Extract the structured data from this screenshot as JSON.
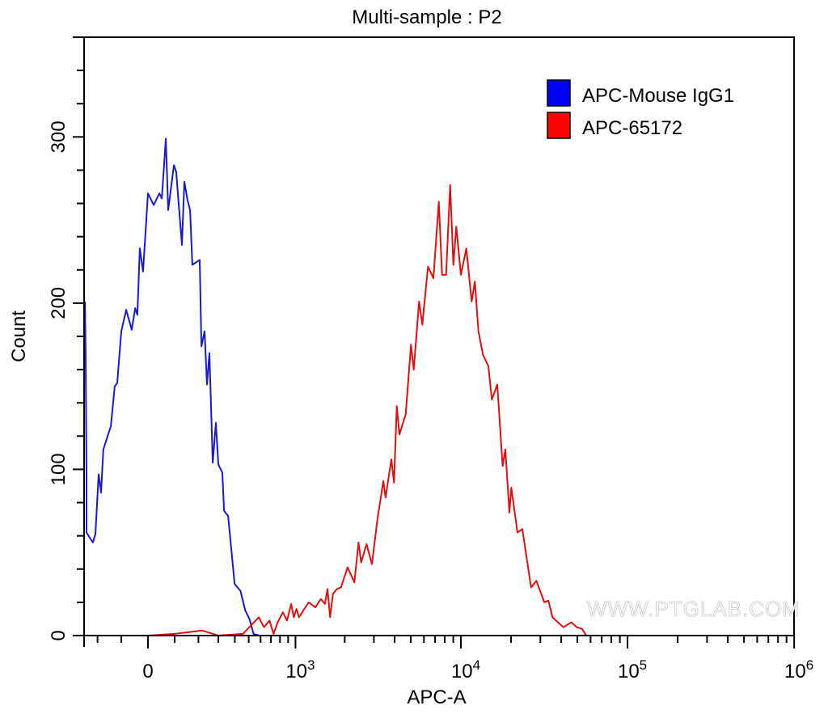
{
  "chart_data": {
    "type": "line",
    "title": "Multi-sample : P2",
    "xlabel": "APC-A",
    "ylabel": "Count",
    "x_scale": "biexponential",
    "xlim": [
      -265,
      1000000
    ],
    "ylim": [
      0,
      360
    ],
    "grid": false,
    "legend_position": "top-right",
    "y_ticks": [
      {
        "value": 0,
        "label": "0"
      },
      {
        "value": 100,
        "label": "100"
      },
      {
        "value": 200,
        "label": "200"
      },
      {
        "value": 300,
        "label": "300"
      }
    ],
    "x_ticks": [
      {
        "value": 0,
        "base": "0",
        "exp": ""
      },
      {
        "value": 1000,
        "base": "10",
        "exp": "3"
      },
      {
        "value": 10000,
        "base": "10",
        "exp": "4"
      },
      {
        "value": 100000,
        "base": "10",
        "exp": "5"
      },
      {
        "value": 1000000,
        "base": "10",
        "exp": "6"
      }
    ],
    "series": [
      {
        "name": "APC-Mouse IgG1",
        "color": "#0000ff",
        "line_color": "#1a1acc",
        "points": [
          [
            -261,
            201
          ],
          [
            -257,
            166
          ],
          [
            -253,
            94
          ],
          [
            -253,
            62
          ],
          [
            -222,
            56
          ],
          [
            -210,
            61
          ],
          [
            -195,
            97
          ],
          [
            -184,
            86
          ],
          [
            -174,
            112
          ],
          [
            -142,
            126
          ],
          [
            -126,
            150
          ],
          [
            -116,
            152
          ],
          [
            -100,
            183
          ],
          [
            -81,
            196
          ],
          [
            -60,
            184
          ],
          [
            -47,
            197
          ],
          [
            -39,
            193
          ],
          [
            -30,
            233
          ],
          [
            -18,
            219
          ],
          [
            0,
            266
          ],
          [
            21,
            259
          ],
          [
            42,
            266
          ],
          [
            51,
            263
          ],
          [
            66,
            299
          ],
          [
            75,
            256
          ],
          [
            97,
            283
          ],
          [
            106,
            279
          ],
          [
            129,
            235
          ],
          [
            139,
            273
          ],
          [
            152,
            262
          ],
          [
            163,
            256
          ],
          [
            173,
            223
          ],
          [
            206,
            226
          ],
          [
            214,
            174
          ],
          [
            229,
            183
          ],
          [
            241,
            151
          ],
          [
            253,
            170
          ],
          [
            270,
            104
          ],
          [
            287,
            128
          ],
          [
            300,
            103
          ],
          [
            323,
            98
          ],
          [
            333,
            75
          ],
          [
            357,
            72
          ],
          [
            399,
            31
          ],
          [
            438,
            27
          ],
          [
            474,
            15
          ],
          [
            506,
            10
          ],
          [
            539,
            1
          ],
          [
            588,
            0
          ]
        ]
      },
      {
        "name": "APC-65172",
        "color": "#ff0000",
        "line_color": "#e01010",
        "points": [
          [
            0,
            0
          ],
          [
            100,
            1
          ],
          [
            218,
            3
          ],
          [
            300,
            0
          ],
          [
            456,
            1
          ],
          [
            584,
            11
          ],
          [
            632,
            5
          ],
          [
            686,
            9
          ],
          [
            728,
            1
          ],
          [
            773,
            8
          ],
          [
            835,
            14
          ],
          [
            885,
            9
          ],
          [
            940,
            19
          ],
          [
            976,
            11
          ],
          [
            1015,
            16
          ],
          [
            1052,
            11
          ],
          [
            1206,
            20
          ],
          [
            1326,
            17
          ],
          [
            1432,
            22
          ],
          [
            1516,
            19
          ],
          [
            1572,
            28
          ],
          [
            1632,
            11
          ],
          [
            1696,
            25
          ],
          [
            1794,
            28
          ],
          [
            1899,
            29
          ],
          [
            2083,
            41
          ],
          [
            2289,
            32
          ],
          [
            2423,
            56
          ],
          [
            2515,
            44
          ],
          [
            2708,
            55
          ],
          [
            2920,
            43
          ],
          [
            3151,
            70
          ],
          [
            3419,
            93
          ],
          [
            3525,
            83
          ],
          [
            3821,
            106
          ],
          [
            3967,
            92
          ],
          [
            4118,
            138
          ],
          [
            4274,
            121
          ],
          [
            4659,
            133
          ],
          [
            5016,
            175
          ],
          [
            5210,
            160
          ],
          [
            5610,
            201
          ],
          [
            5867,
            187
          ],
          [
            6344,
            222
          ],
          [
            6840,
            215
          ],
          [
            7372,
            261
          ],
          [
            7709,
            217
          ],
          [
            8154,
            217
          ],
          [
            8618,
            271
          ],
          [
            9015,
            223
          ],
          [
            9384,
            246
          ],
          [
            10001,
            217
          ],
          [
            10780,
            233
          ],
          [
            11607,
            201
          ],
          [
            12132,
            213
          ],
          [
            12752,
            183
          ],
          [
            13568,
            169
          ],
          [
            14628,
            162
          ],
          [
            15344,
            142
          ],
          [
            16536,
            151
          ],
          [
            17808,
            102
          ],
          [
            18497,
            112
          ],
          [
            19557,
            74
          ],
          [
            20060,
            89
          ],
          [
            21862,
            62
          ],
          [
            23373,
            64
          ],
          [
            26367,
            29
          ],
          [
            28355,
            33
          ],
          [
            31694,
            20
          ],
          [
            33522,
            21
          ],
          [
            35457,
            11
          ],
          [
            41207,
            5
          ],
          [
            46083,
            8
          ],
          [
            49608,
            5
          ],
          [
            53450,
            4
          ],
          [
            56524,
            0
          ]
        ]
      }
    ]
  },
  "watermark": "WWW.PTGLAB.COM"
}
